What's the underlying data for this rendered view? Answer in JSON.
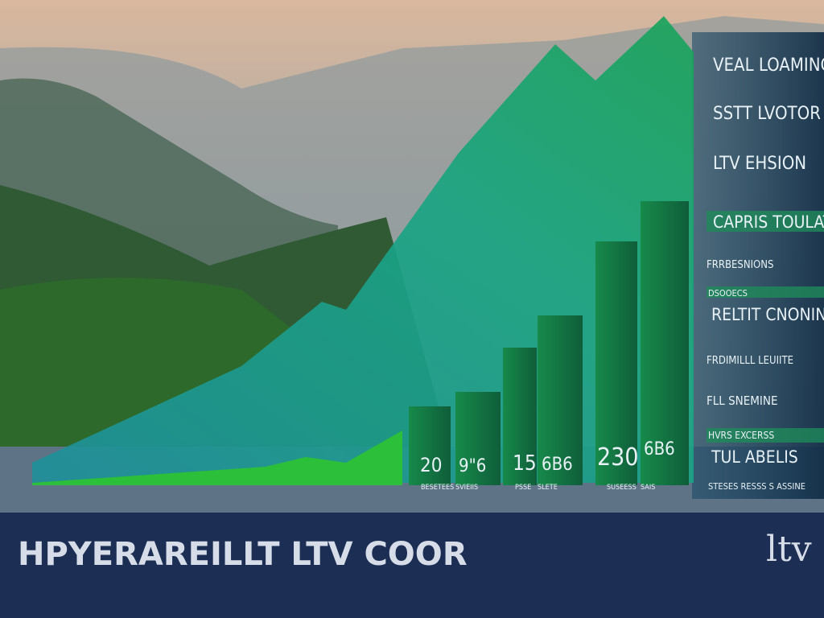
{
  "side_labels": [
    "VEAL LOAMING",
    "SSTT LVOTOR",
    "LTV EHSION",
    "CAPRIS TOULAT",
    "FRRBESNIONS",
    "DSOOECS",
    "RELTIT CNONINIS",
    "FRDIMILLL LEUIITE",
    "FLL SNEMINE",
    "HVRS EXCERSS",
    "TUL ABELIS",
    "STESES RESSS S ASSINE"
  ],
  "bar_labels": [
    "20",
    "9\"6",
    "15",
    "6B6",
    "230",
    "6B6"
  ],
  "bar_captions": [
    "BESETEES",
    "SVIEIIS",
    "PSSE",
    "SLETE",
    "SUSEESS",
    "SAIS"
  ],
  "footer": {
    "title": "HPYERAREILLT LTV COOR",
    "logo": "ltv"
  }
}
